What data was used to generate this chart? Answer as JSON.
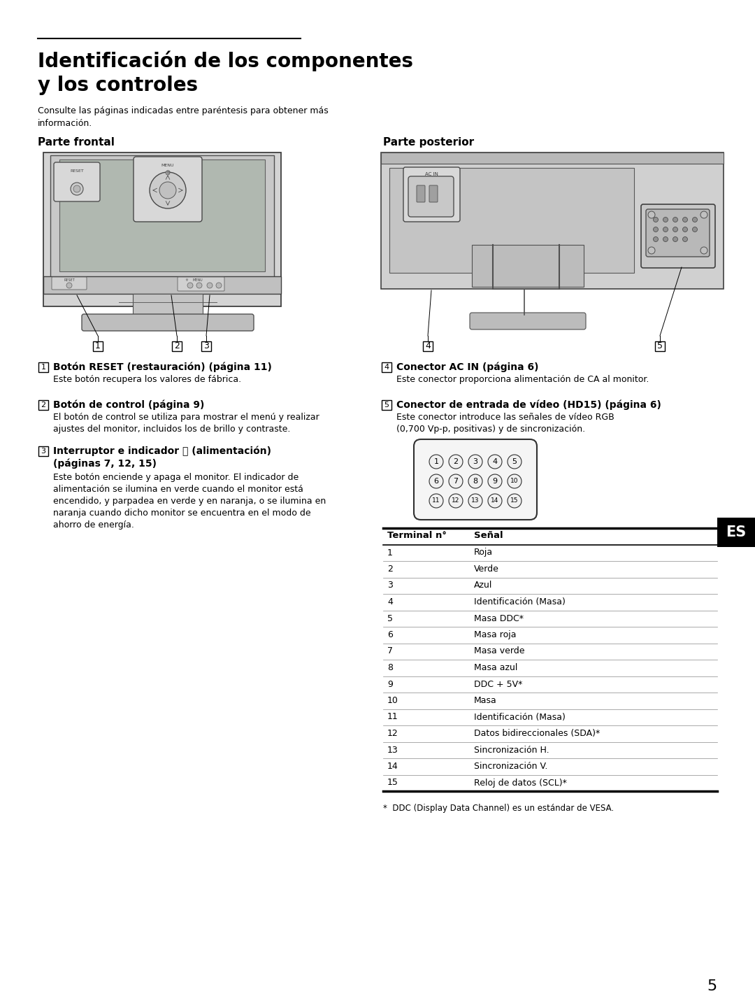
{
  "title_line1": "Identificación de los componentes",
  "title_line2": "y los controles",
  "subtitle": "Consulte las páginas indicadas entre paréntesis para obtener más\ninformación.",
  "section_left": "Parte frontal",
  "section_right": "Parte posterior",
  "item1_title": "Botón RESET (restauración) (página 11)",
  "item1_desc": "Este botón recupera los valores de fábrica.",
  "item2_title": "Botón de control (página 9)",
  "item2_desc": "El botón de control se utiliza para mostrar el menú y realizar\najustes del monitor, incluidos los de brillo y contraste.",
  "item3_title_l1": "Interruptor e indicador ⓘ (alimentación)",
  "item3_title_l2": "(páginas 7, 12, 15)",
  "item3_desc": "Este botón enciende y apaga el monitor. El indicador de\nalimentación se ilumina en verde cuando el monitor está\nencendido, y parpadea en verde y en naranja, o se ilumina en\nnaranja cuando dicho monitor se encuentra en el modo de\nahorro de energía.",
  "item4_title": "Conector AC IN (página 6)",
  "item4_desc": "Este conector proporciona alimentación de CA al monitor.",
  "item5_title": "Conector de entrada de vídeo (HD15) (página 6)",
  "item5_desc": "Este conector introduce las señales de vídeo RGB\n(0,700 Vp-p, positivas) y de sincronización.",
  "table_headers": [
    "Terminal n°",
    "Señal"
  ],
  "table_rows": [
    [
      "1",
      "Roja"
    ],
    [
      "2",
      "Verde"
    ],
    [
      "3",
      "Azul"
    ],
    [
      "4",
      "Identificación (Masa)"
    ],
    [
      "5",
      "Masa DDC*"
    ],
    [
      "6",
      "Masa roja"
    ],
    [
      "7",
      "Masa verde"
    ],
    [
      "8",
      "Masa azul"
    ],
    [
      "9",
      "DDC + 5V*"
    ],
    [
      "10",
      "Masa"
    ],
    [
      "11",
      "Identificación (Masa)"
    ],
    [
      "12",
      "Datos bidireccionales (SDA)*"
    ],
    [
      "13",
      "Sincronización H."
    ],
    [
      "14",
      "Sincronización V."
    ],
    [
      "15",
      "Reloj de datos (SCL)*"
    ]
  ],
  "footnote": "*  DDC (Display Data Channel) es un estándar de VESA.",
  "page_number": "5",
  "es_label": "ES",
  "bg_color": "#ffffff"
}
